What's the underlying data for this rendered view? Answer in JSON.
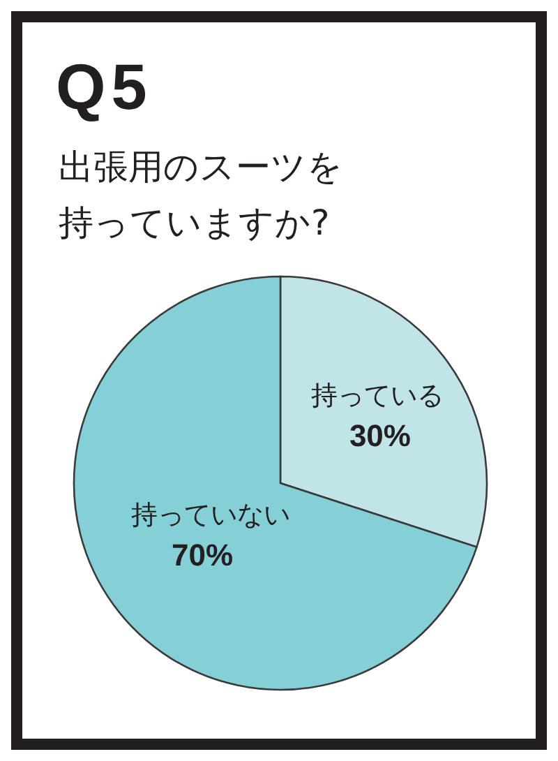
{
  "chart_data": {
    "type": "pie",
    "title": "Q5",
    "subtitle": "出張用のスーツを持っていますか?",
    "categories": [
      "持っている",
      "持っていない"
    ],
    "values": [
      30,
      70
    ],
    "colors": [
      "#c0e4e8",
      "#84d0d6"
    ],
    "value_labels": [
      "30%",
      "70%"
    ]
  }
}
